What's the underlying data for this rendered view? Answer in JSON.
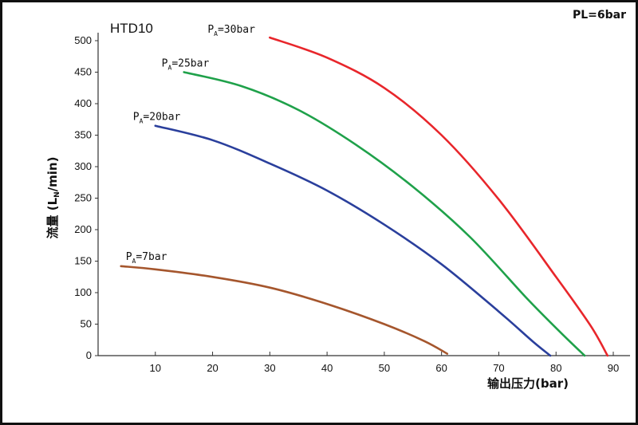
{
  "chart_data": {
    "type": "line",
    "title": "HTD10",
    "corner_note": "PL=6bar",
    "xlabel": "输出压力(bar)",
    "ylabel_main": "流量 (L",
    "ylabel_sub": "N",
    "ylabel_tail": "/min)",
    "xlim": [
      0,
      90
    ],
    "ylim": [
      0,
      500
    ],
    "x_ticks": [
      10,
      20,
      30,
      40,
      50,
      60,
      70,
      80,
      90
    ],
    "y_ticks": [
      0,
      50,
      100,
      150,
      200,
      250,
      300,
      350,
      400,
      450,
      500
    ],
    "grid": false,
    "series": [
      {
        "name": "30bar",
        "label_prefix": "P",
        "label_sub": "A",
        "label_suffix": "=30bar",
        "color": "#e8262b",
        "x": [
          30,
          40,
          50,
          60,
          70,
          80,
          86,
          89
        ],
        "y": [
          505,
          473,
          425,
          350,
          248,
          125,
          48,
          0
        ]
      },
      {
        "name": "25bar",
        "label_prefix": "P",
        "label_sub": "A",
        "label_suffix": "=25bar",
        "color": "#1fa14a",
        "x": [
          15,
          25,
          35,
          45,
          55,
          65,
          75,
          81,
          85
        ],
        "y": [
          450,
          428,
          390,
          335,
          268,
          188,
          90,
          35,
          0
        ]
      },
      {
        "name": "20bar",
        "label_prefix": "P",
        "label_sub": "A",
        "label_suffix": "=20bar",
        "color": "#2a3f9c",
        "x": [
          10,
          20,
          30,
          40,
          50,
          60,
          70,
          76,
          79
        ],
        "y": [
          365,
          342,
          305,
          262,
          208,
          145,
          70,
          22,
          0
        ]
      },
      {
        "name": "7bar",
        "label_prefix": "P",
        "label_sub": "A",
        "label_suffix": "=7bar",
        "color": "#a5562d",
        "x": [
          4,
          10,
          20,
          30,
          40,
          50,
          57,
          61
        ],
        "y": [
          142,
          137,
          125,
          108,
          82,
          50,
          23,
          3
        ]
      }
    ]
  }
}
